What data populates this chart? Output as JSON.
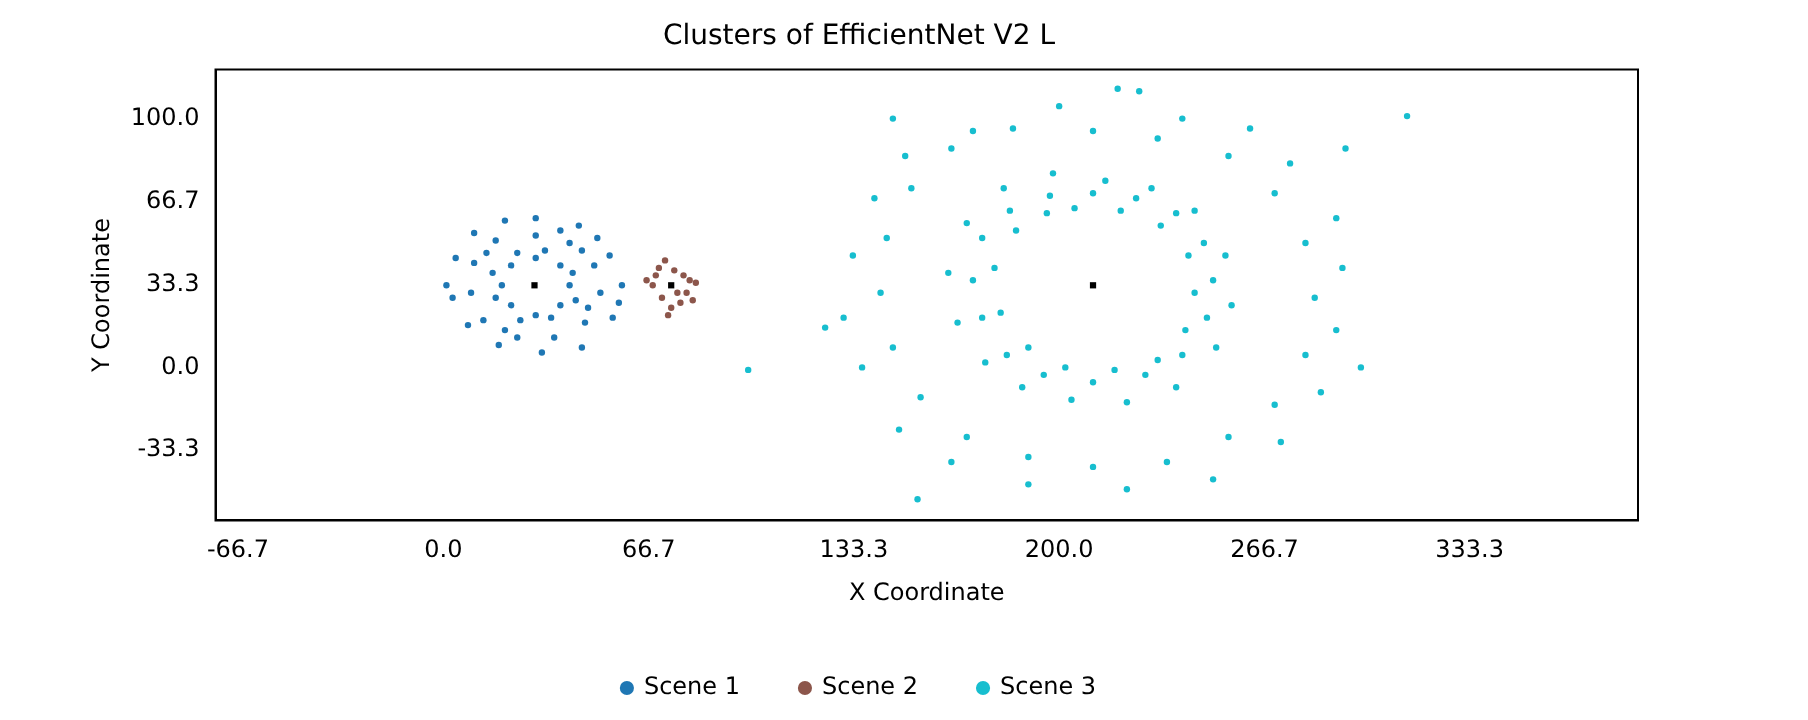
{
  "chart_data": {
    "type": "scatter",
    "title": "Clusters of EfficientNet V2 L",
    "xlabel": "X Coordinate",
    "ylabel": "Y Coordinate",
    "xlim": [
      -74,
      388
    ],
    "ylim": [
      -61.5,
      119.7
    ],
    "xticks": [
      -66.7,
      {
        "value": 0,
        "label": "0.0"
      },
      66.7,
      133.3,
      {
        "value": 200,
        "label": "200.0"
      },
      266.7,
      333.3
    ],
    "yticks": [
      -33.3,
      {
        "value": 0,
        "label": "0.0"
      },
      33.3,
      66.7,
      {
        "value": 100,
        "label": "100.0"
      }
    ],
    "grid": false,
    "legend": "bottom",
    "marker": "circle",
    "series": [
      {
        "name": "Scene 1",
        "color": "#1f77b4",
        "x": [
          30,
          38,
          41,
          38,
          30,
          22,
          19,
          22,
          33,
          42,
          43,
          35,
          25,
          17,
          16,
          24,
          30,
          41,
          49,
          51,
          46,
          36,
          24,
          13,
          9,
          10,
          17,
          45,
          14,
          47,
          20,
          38,
          30,
          44,
          54,
          58,
          55,
          45,
          32,
          18,
          8,
          3,
          1,
          4,
          10,
          20,
          50,
          57
        ],
        "values": [
          44,
          41,
          33,
          25,
          21,
          25,
          33,
          41,
          47,
          38,
          27,
          20,
          19,
          28,
          38,
          46,
          53,
          50,
          41,
          30,
          18,
          12,
          12,
          19,
          30,
          42,
          51,
          47,
          46,
          24,
          15,
          55,
          60,
          57,
          45,
          33,
          20,
          8,
          6,
          9,
          17,
          28,
          33,
          44,
          54,
          59,
          52,
          26
        ]
      },
      {
        "name": "Scene 2",
        "color": "#8c564b",
        "x": [
          70,
          72,
          75,
          78,
          80,
          82,
          79,
          81,
          77,
          74,
          71,
          68,
          66,
          73,
          76,
          69
        ],
        "values": [
          40,
          43,
          39,
          37,
          35,
          34,
          30,
          27,
          26,
          24,
          28,
          33,
          35,
          21,
          30,
          37
        ]
      },
      {
        "name": "Scene 3",
        "color": "#17becf",
        "x": [
          211,
          225,
          238,
          247,
          250,
          248,
          240,
          228,
          211,
          195,
          183,
          175,
          172,
          175,
          184,
          197,
          205,
          220,
          233,
          242,
          244,
          241,
          232,
          218,
          202,
          190,
          181,
          179,
          186,
          196,
          215,
          230,
          244,
          254,
          256,
          251,
          238,
          222,
          204,
          188,
          176,
          167,
          164,
          170,
          182,
          198,
          211,
          232,
          255,
          270,
          280,
          283,
          280,
          270,
          255,
          235,
          211,
          190,
          170,
          155,
          146,
          142,
          144,
          152,
          165,
          185,
          200,
          219,
          226,
          240,
          262,
          275,
          290,
          292,
          290,
          285,
          272,
          250,
          222,
          190,
          165,
          148,
          136,
          130,
          133,
          140,
          150,
          172,
          146,
          313,
          298,
          293,
          154,
          124,
          99
        ],
        "values": [
          70,
          68,
          62,
          50,
          35,
          20,
          5,
          -3,
          -6,
          -3,
          5,
          20,
          35,
          52,
          63,
          69,
          64,
          63,
          57,
          45,
          30,
          15,
          3,
          -1,
          0,
          8,
          22,
          40,
          55,
          62,
          75,
          72,
          63,
          45,
          25,
          8,
          -8,
          -14,
          -13,
          -8,
          2,
          18,
          38,
          58,
          72,
          78,
          95,
          92,
          85,
          70,
          50,
          28,
          5,
          -15,
          -28,
          -38,
          -40,
          -36,
          -28,
          -12,
          8,
          30,
          52,
          72,
          88,
          96,
          105,
          112,
          111,
          100,
          96,
          82,
          60,
          40,
          15,
          -10,
          -30,
          -45,
          -49,
          -47,
          -38,
          -25,
          0,
          20,
          45,
          68,
          85,
          95,
          100,
          101,
          0,
          88,
          -53,
          16,
          -1
        ]
      },
      {
        "color": "#000000",
        "marker": "square",
        "x": [
          29.6,
          74,
          211
        ],
        "values": [
          33,
          33,
          33
        ]
      }
    ]
  }
}
